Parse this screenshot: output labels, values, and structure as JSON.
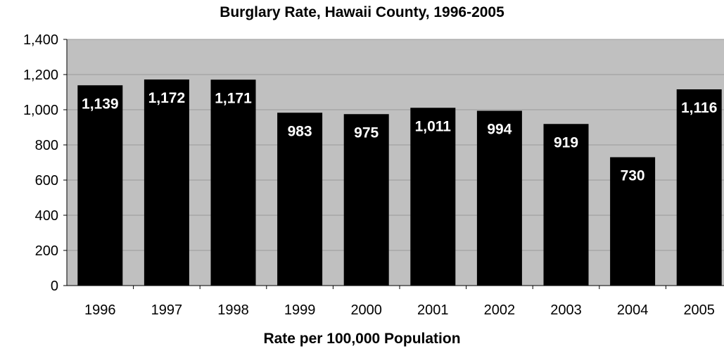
{
  "chart_data": {
    "type": "bar",
    "title": "Burglary Rate, Hawaii County, 1996-2005",
    "xlabel": "Rate per 100,000 Population",
    "ylabel": "",
    "categories": [
      "1996",
      "1997",
      "1998",
      "1999",
      "2000",
      "2001",
      "2002",
      "2003",
      "2004",
      "2005"
    ],
    "values": [
      1139,
      1172,
      1171,
      983,
      975,
      1011,
      994,
      919,
      730,
      1116
    ],
    "data_labels": [
      "1,139",
      "1,172",
      "1,171",
      "983",
      "975",
      "1,011",
      "994",
      "919",
      "730",
      "1,116"
    ],
    "y_ticks": [
      "0",
      "200",
      "400",
      "600",
      "800",
      "1,000",
      "1,200",
      "1,400"
    ],
    "ylim": [
      0,
      1400
    ],
    "grid": true,
    "legend": "none",
    "colors": {
      "bar": "#000000",
      "plot_background": "#c0c0c0",
      "gridline": "#9a9a9a",
      "label": "#ffffff"
    }
  }
}
